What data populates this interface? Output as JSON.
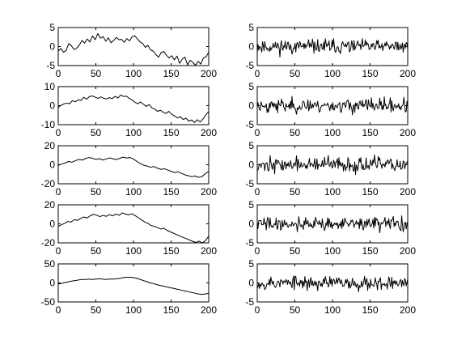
{
  "chart_data": [
    {
      "type": "line",
      "id": "ax-l1",
      "column": "left",
      "row": 0,
      "xlim": [
        0,
        200
      ],
      "ylim": [
        -5,
        5
      ],
      "xticks": [
        0,
        50,
        100,
        150,
        200
      ],
      "yticks": [
        -5,
        0,
        5
      ],
      "series": [
        {
          "y": [
            -1.2,
            -0.5,
            -1.5,
            -1.0,
            0.8,
            0.2,
            -0.8,
            -0.4,
            0.4,
            1.6,
            0.9,
            2.0,
            1.2,
            2.8,
            1.8,
            3.4,
            2.2,
            2.6,
            1.4,
            2.3,
            1.0,
            1.6,
            2.4,
            1.8,
            1.9,
            1.1,
            2.1,
            1.5,
            2.6,
            2.8,
            2.0,
            1.2,
            0.8,
            -0.2,
            0.3,
            -0.9,
            -1.2,
            -2.1,
            -2.8,
            -1.6,
            -1.3,
            -2.3,
            -3.0,
            -2.4,
            -3.5,
            -2.5,
            -4.4,
            -3.3,
            -2.8,
            -4.8,
            -3.6,
            -4.2,
            -4.9,
            -3.9,
            -4.6,
            -3.0,
            -2.7,
            -1.5
          ]
        }
      ]
    },
    {
      "type": "line",
      "id": "ax-l2",
      "column": "left",
      "row": 1,
      "xlim": [
        0,
        200
      ],
      "ylim": [
        -10,
        10
      ],
      "xticks": [
        0,
        50,
        100,
        150,
        200
      ],
      "yticks": [
        -10,
        0,
        10
      ],
      "series": [
        {
          "y": [
            -1.0,
            0.2,
            0.9,
            1.3,
            1.0,
            2.6,
            2.0,
            3.1,
            2.7,
            4.4,
            3.4,
            4.8,
            5.1,
            4.5,
            3.8,
            4.6,
            3.9,
            3.5,
            4.2,
            3.7,
            4.9,
            4.0,
            5.6,
            4.8,
            5.0,
            3.8,
            3.0,
            1.8,
            1.0,
            1.9,
            0.8,
            -0.4,
            0.6,
            -1.2,
            -1.8,
            -3.0,
            -2.4,
            -3.5,
            -4.1,
            -3.0,
            -4.6,
            -5.4,
            -6.5,
            -5.8,
            -7.3,
            -6.6,
            -8.2,
            -7.5,
            -8.9,
            -7.4,
            -8.6,
            -7.0,
            -4.8,
            -3.2
          ]
        }
      ]
    },
    {
      "type": "line",
      "id": "ax-l3",
      "column": "left",
      "row": 2,
      "xlim": [
        0,
        200
      ],
      "ylim": [
        -20,
        20
      ],
      "xticks": [
        0,
        50,
        100,
        150,
        200
      ],
      "yticks": [
        -20,
        0,
        20
      ],
      "series": [
        {
          "y": [
            -0.8,
            0.8,
            1.8,
            3.5,
            2.6,
            4.2,
            5.6,
            4.9,
            6.6,
            7.6,
            6.8,
            5.5,
            6.4,
            5.0,
            6.0,
            7.2,
            6.3,
            5.4,
            6.8,
            8.0,
            7.0,
            7.6,
            6.0,
            3.5,
            1.2,
            -0.5,
            -1.4,
            -2.6,
            -1.9,
            -3.6,
            -4.9,
            -4.2,
            -5.6,
            -6.9,
            -8.2,
            -7.4,
            -9.0,
            -10.5,
            -11.5,
            -12.6,
            -11.8,
            -13.3,
            -12.5,
            -9.5,
            -6.8
          ]
        }
      ]
    },
    {
      "type": "line",
      "id": "ax-l4",
      "column": "left",
      "row": 3,
      "xlim": [
        0,
        200
      ],
      "ylim": [
        -20,
        20
      ],
      "xticks": [
        0,
        50,
        100,
        150,
        200
      ],
      "yticks": [
        -20,
        0,
        20
      ],
      "series": [
        {
          "y": [
            -2.5,
            -1.0,
            0.5,
            2.5,
            1.8,
            4.5,
            3.6,
            5.8,
            7.2,
            6.2,
            8.5,
            10.0,
            9.1,
            7.6,
            8.8,
            7.9,
            9.6,
            8.4,
            10.3,
            9.0,
            11.5,
            10.2,
            9.5,
            10.6,
            8.7,
            6.5,
            4.2,
            2.0,
            0.6,
            -1.8,
            -2.6,
            -4.0,
            -5.5,
            -4.6,
            -6.8,
            -8.4,
            -9.9,
            -11.3,
            -12.8,
            -14.3,
            -15.6,
            -17.0,
            -18.4,
            -19.6,
            -18.2,
            -20.0,
            -17.5,
            -13.0
          ]
        }
      ]
    },
    {
      "type": "line",
      "id": "ax-l5",
      "column": "left",
      "row": 4,
      "xlim": [
        0,
        200
      ],
      "ylim": [
        -50,
        50
      ],
      "xticks": [
        0,
        50,
        100,
        150,
        200
      ],
      "yticks": [
        -50,
        0,
        50
      ],
      "series": [
        {
          "y": [
            -3,
            -1,
            1,
            3,
            5,
            6,
            8,
            9,
            9,
            10,
            9,
            10,
            11,
            10,
            9,
            10,
            10,
            11,
            12,
            14,
            15,
            15,
            14,
            12,
            9,
            6,
            3,
            0,
            -2,
            -5,
            -7,
            -9,
            -11,
            -13,
            -15,
            -17,
            -19,
            -21,
            -23,
            -25,
            -27,
            -29,
            -30,
            -29,
            -27
          ]
        }
      ]
    },
    {
      "type": "line",
      "id": "ax-r1",
      "column": "right",
      "row": 0,
      "xlim": [
        0,
        200
      ],
      "ylim": [
        -5,
        5
      ],
      "xticks": [
        0,
        50,
        100,
        150,
        200
      ],
      "yticks": [
        -5,
        0,
        5
      ],
      "noise": {
        "seed": 11,
        "scale": 0.9,
        "max": 2.8
      }
    },
    {
      "type": "line",
      "id": "ax-r2",
      "column": "right",
      "row": 1,
      "xlim": [
        0,
        200
      ],
      "ylim": [
        -5,
        5
      ],
      "xticks": [
        0,
        50,
        100,
        150,
        200
      ],
      "yticks": [
        -5,
        0,
        5
      ],
      "noise": {
        "seed": 23,
        "scale": 0.9,
        "max": 2.8
      }
    },
    {
      "type": "line",
      "id": "ax-r3",
      "column": "right",
      "row": 2,
      "xlim": [
        0,
        200
      ],
      "ylim": [
        -5,
        5
      ],
      "xticks": [
        0,
        50,
        100,
        150,
        200
      ],
      "yticks": [
        -5,
        0,
        5
      ],
      "noise": {
        "seed": 37,
        "scale": 0.95,
        "max": 3.0
      }
    },
    {
      "type": "line",
      "id": "ax-r4",
      "column": "right",
      "row": 3,
      "xlim": [
        0,
        200
      ],
      "ylim": [
        -5,
        5
      ],
      "xticks": [
        0,
        50,
        100,
        150,
        200
      ],
      "yticks": [
        -5,
        0,
        5
      ],
      "noise": {
        "seed": 41,
        "scale": 0.9,
        "max": 2.8
      }
    },
    {
      "type": "line",
      "id": "ax-r5",
      "column": "right",
      "row": 4,
      "xlim": [
        0,
        200
      ],
      "ylim": [
        -5,
        5
      ],
      "xticks": [
        0,
        50,
        100,
        150,
        200
      ],
      "yticks": [
        -5,
        0,
        5
      ],
      "noise": {
        "seed": 53,
        "scale": 0.9,
        "max": 2.8
      }
    }
  ]
}
